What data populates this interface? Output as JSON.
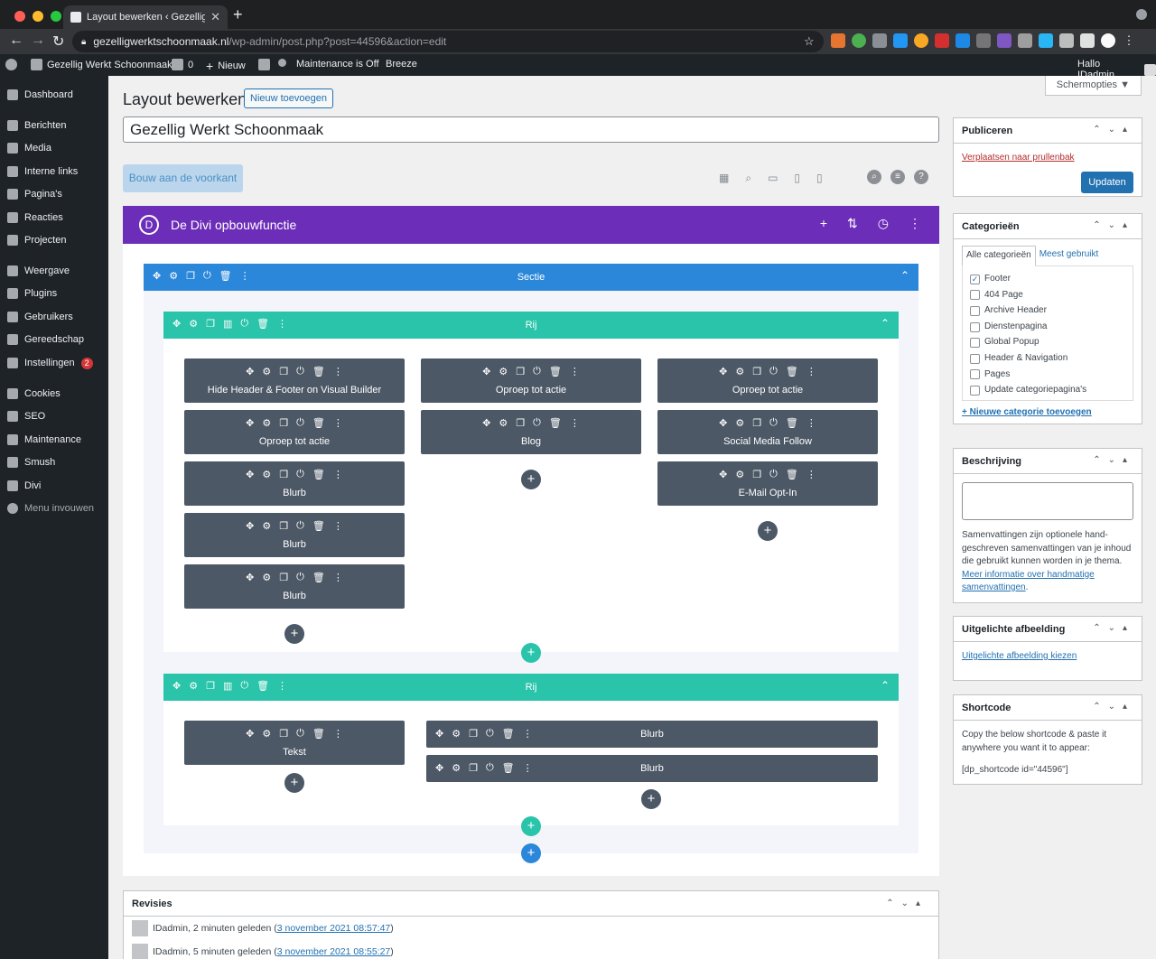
{
  "browser": {
    "tab_title": "Layout bewerken ‹ Gezellig W",
    "url_host": "gezelligwerktschoonmaak.nl",
    "url_path": "/wp-admin/post.php?post=44596&action=edit"
  },
  "adminbar": {
    "site": "Gezellig Werkt Schoonmaak",
    "comments": "0",
    "new": "Nieuw",
    "maintenance": "Maintenance is Off",
    "breeze": "Breeze",
    "greeting": "Hallo IDadmin"
  },
  "sidebar": [
    {
      "label": "Dashboard",
      "icon": "dashboard-icon"
    },
    {
      "label": "Berichten",
      "icon": "pin-icon"
    },
    {
      "label": "Media",
      "icon": "media-icon"
    },
    {
      "label": "Interne links",
      "icon": "link-icon"
    },
    {
      "label": "Pagina's",
      "icon": "page-icon"
    },
    {
      "label": "Reacties",
      "icon": "comment-icon"
    },
    {
      "label": "Projecten",
      "icon": "pin-icon"
    },
    {
      "label": "Weergave",
      "icon": "brush-icon"
    },
    {
      "label": "Plugins",
      "icon": "plugin-icon"
    },
    {
      "label": "Gebruikers",
      "icon": "user-icon"
    },
    {
      "label": "Gereedschap",
      "icon": "wrench-icon"
    },
    {
      "label": "Instellingen",
      "icon": "settings-icon",
      "badge": "2"
    },
    {
      "label": "Cookies",
      "icon": "cookie-icon"
    },
    {
      "label": "SEO",
      "icon": "yoast-icon"
    },
    {
      "label": "Maintenance",
      "icon": "maintenance-icon"
    },
    {
      "label": "Smush",
      "icon": "smush-icon"
    },
    {
      "label": "Divi",
      "icon": "divi-icon"
    },
    {
      "label": "Menu invouwen",
      "icon": "collapse-icon"
    }
  ],
  "page": {
    "heading": "Layout bewerken",
    "add_new": "Nieuw toevoegen",
    "screen_options": "Schermopties ▼",
    "title_value": "Gezellig Werkt Schoonmaak",
    "front_button": "Bouw aan de voorkant"
  },
  "divi": {
    "logo": "D",
    "title": "De Divi opbouwfunctie",
    "section_label": "Sectie",
    "row_label": "Rij",
    "row1": {
      "col1": [
        "Hide Header & Footer on Visual Builder",
        "Oproep tot actie",
        "Blurb",
        "Blurb",
        "Blurb"
      ],
      "col2": [
        "Oproep tot actie",
        "Blog"
      ],
      "col3": [
        "Oproep tot actie",
        "Social Media Follow",
        "E-Mail Opt-In"
      ]
    },
    "row2": {
      "col1": [
        "Tekst"
      ],
      "col2": [
        "Blurb",
        "Blurb"
      ]
    }
  },
  "revisions": {
    "title": "Revisies",
    "items": [
      {
        "text": "IDadmin, 2 minuten geleden (",
        "link": "3 november 2021 08:57:47",
        "end": ")"
      },
      {
        "text": "IDadmin, 5 minuten geleden (",
        "link": "3 november 2021 08:55:27",
        "end": ")"
      }
    ]
  },
  "publish": {
    "title": "Publiceren",
    "trash": "Verplaatsen naar prullenbak",
    "update": "Updaten"
  },
  "categories": {
    "title": "Categorieën",
    "tab_all": "Alle categorieën",
    "tab_most": "Meest gebruikt",
    "items": [
      {
        "label": "Footer",
        "checked": true
      },
      {
        "label": "404 Page"
      },
      {
        "label": "Archive Header"
      },
      {
        "label": "Dienstenpagina"
      },
      {
        "label": "Global Popup"
      },
      {
        "label": "Header & Navigation"
      },
      {
        "label": "Pages"
      },
      {
        "label": "Update categoriepagina's"
      }
    ],
    "add": "+ Nieuwe categorie toevoegen"
  },
  "excerpt": {
    "title": "Beschrijving",
    "help": "Samenvattingen zijn optionele hand-geschreven samenvattingen van je inhoud die gebruikt kunnen worden in je thema. ",
    "link": "Meer informatie over handmatige samenvattingen",
    "end": "."
  },
  "featured": {
    "title": "Uitgelichte afbeelding",
    "link": "Uitgelichte afbeelding kiezen"
  },
  "shortcode": {
    "title": "Shortcode",
    "help": "Copy the below shortcode & paste it anywhere you want it to appear:",
    "code": "[dp_shortcode id=\"44596\"]"
  }
}
